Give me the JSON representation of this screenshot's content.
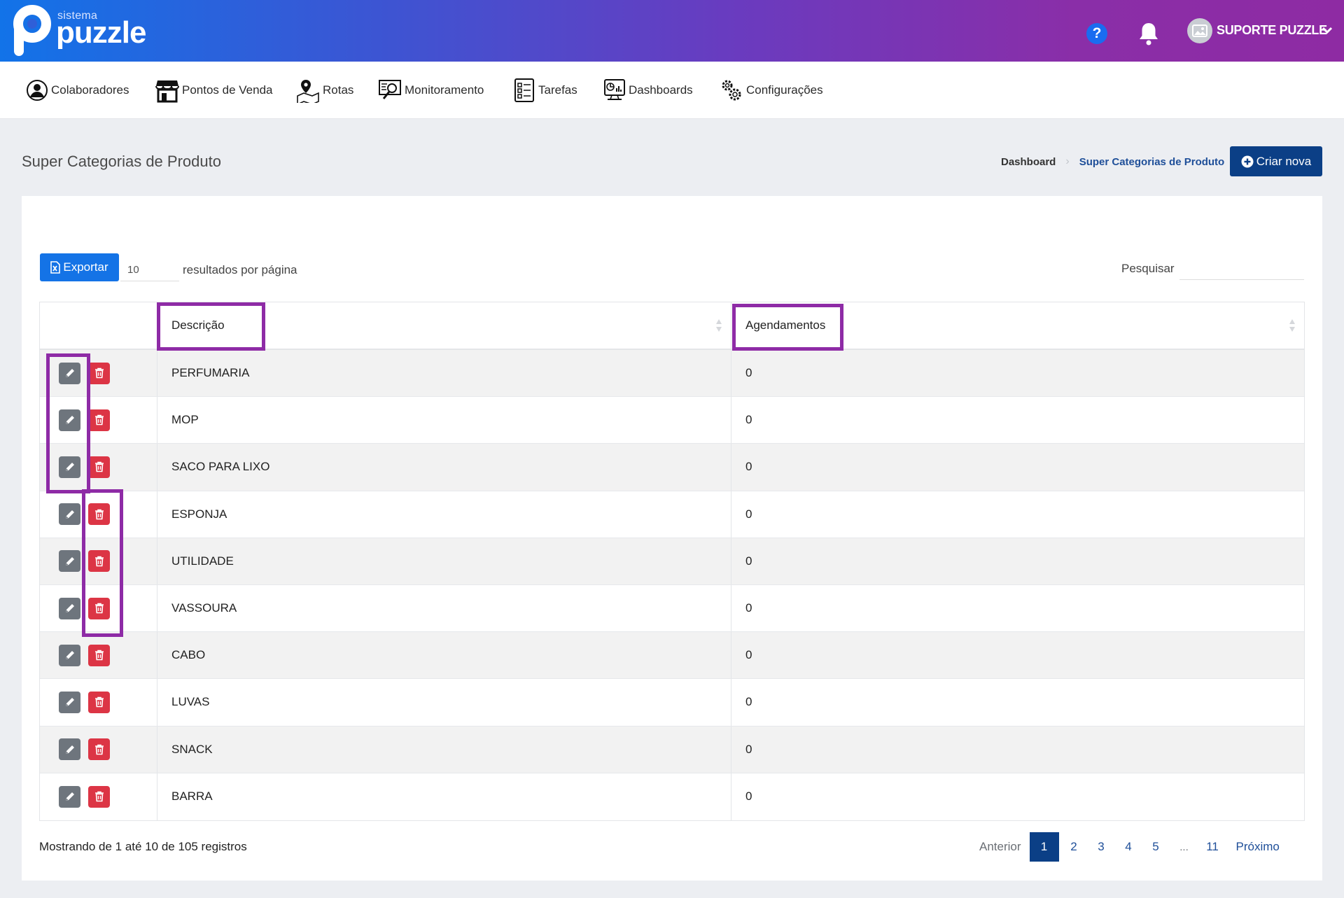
{
  "brand": {
    "small_text": "sistema",
    "big_text": "puzzle"
  },
  "header": {
    "help_icon_text": "?",
    "user_name": "SUPORTE PUZZLE"
  },
  "nav": [
    {
      "label": "Colaboradores",
      "icon": "user-circle-icon"
    },
    {
      "label": "Pontos de Venda",
      "icon": "store-icon"
    },
    {
      "label": "Rotas",
      "icon": "map-pin-icon"
    },
    {
      "label": "Monitoramento",
      "icon": "monitor-search-icon"
    },
    {
      "label": "Tarefas",
      "icon": "checklist-icon"
    },
    {
      "label": "Dashboards",
      "icon": "dashboard-screen-icon"
    },
    {
      "label": "Configurações",
      "icon": "gears-icon"
    }
  ],
  "page": {
    "title": "Super Categorias de Produto",
    "breadcrumb": {
      "home": "Dashboard",
      "current": "Super Categorias de Produto"
    },
    "create_label": "Criar nova"
  },
  "toolbar": {
    "export_label": "Exportar",
    "per_page_value": "10",
    "per_page_label": "resultados por página",
    "search_label": "Pesquisar",
    "search_value": ""
  },
  "table": {
    "columns": [
      "Descrição",
      "Agendamentos"
    ],
    "rows": [
      {
        "descricao": "PERFUMARIA",
        "agendamentos": "0"
      },
      {
        "descricao": "MOP",
        "agendamentos": "0"
      },
      {
        "descricao": "SACO PARA LIXO",
        "agendamentos": "0"
      },
      {
        "descricao": "ESPONJA",
        "agendamentos": "0"
      },
      {
        "descricao": "UTILIDADE",
        "agendamentos": "0"
      },
      {
        "descricao": "VASSOURA",
        "agendamentos": "0"
      },
      {
        "descricao": "CABO",
        "agendamentos": "0"
      },
      {
        "descricao": "LUVAS",
        "agendamentos": "0"
      },
      {
        "descricao": "SNACK",
        "agendamentos": "0"
      },
      {
        "descricao": "BARRA",
        "agendamentos": "0"
      }
    ]
  },
  "footer": {
    "info": "Mostrando de 1 até 10 de 105 registros",
    "pagination": {
      "prev": "Anterior",
      "pages": [
        "1",
        "2",
        "3",
        "4",
        "5",
        "...",
        "11"
      ],
      "active": "1",
      "next": "Próximo"
    }
  },
  "colors": {
    "primary_dark": "#0b3f86",
    "primary": "#1473e6",
    "edit_button": "#6e757d",
    "delete_button": "#dc3545",
    "highlight": "#8e2ba6"
  }
}
